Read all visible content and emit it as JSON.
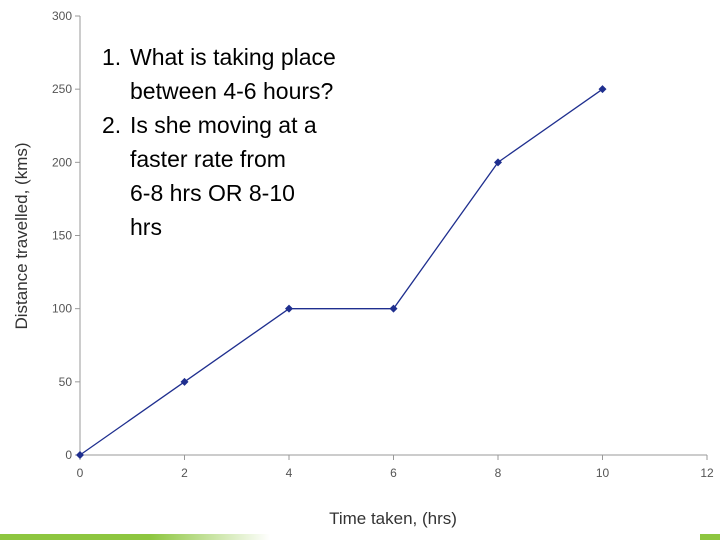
{
  "chart_data": {
    "type": "line",
    "title": "",
    "xlabel": "Time taken, (hrs)",
    "ylabel": "Distance travelled, (kms)",
    "x": [
      0,
      2,
      4,
      6,
      8,
      10
    ],
    "series": [
      {
        "values": [
          0,
          50,
          100,
          100,
          200,
          250
        ]
      }
    ],
    "xlim": [
      0,
      12
    ],
    "ylim": [
      0,
      300
    ],
    "xticks": [
      0,
      2,
      4,
      6,
      8,
      10,
      12
    ],
    "yticks": [
      0,
      50,
      100,
      150,
      200,
      250,
      300
    ],
    "xtick_labels": [
      "0",
      "2",
      "4",
      "6",
      "8",
      "10",
      "12"
    ],
    "ytick_labels": [
      "0",
      "50",
      "100",
      "150",
      "200",
      "250",
      "300"
    ],
    "grid": false,
    "legend": "none",
    "colors": {
      "line": "#1f2f8f",
      "marker": "#1f2f8f",
      "axis": "#999999",
      "accent_bar": "#8dc63f"
    }
  },
  "questions": [
    {
      "number": "1.",
      "lines": [
        "What is taking place",
        "between 4-6 hours?"
      ]
    },
    {
      "number": "2.",
      "lines": [
        "Is she moving at a",
        "faster rate from",
        "6-8 hrs OR 8-10",
        "hrs"
      ]
    }
  ]
}
